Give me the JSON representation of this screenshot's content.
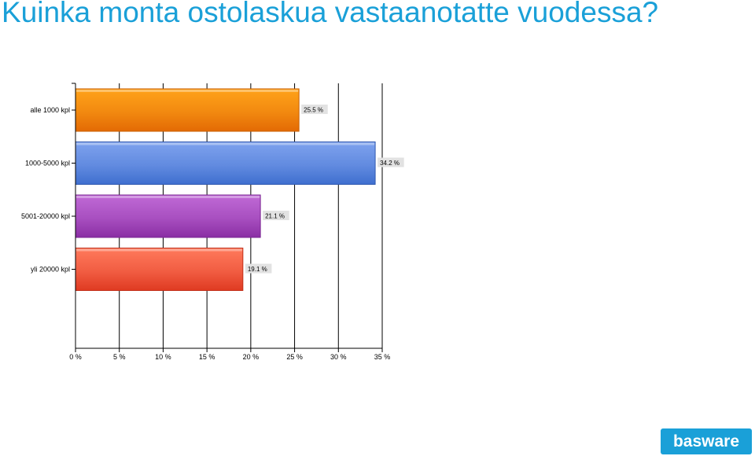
{
  "slide": {
    "title": "Kuinka monta ostolaskua vastaanotatte vuodessa?",
    "logo_text": "basware"
  },
  "colors": {
    "title": "#1aa0d8",
    "logo": "#1aa0d8",
    "axis": "#000000",
    "grid": "#000000",
    "label_box": "#e2e2e2"
  },
  "chart_data": {
    "type": "bar",
    "orientation": "horizontal",
    "title": "",
    "xlabel": "",
    "ylabel": "",
    "categories": [
      "alle 1000 kpl",
      "1000-5000 kpl",
      "5001-20000 kpl",
      "yli 20000 kpl"
    ],
    "values": [
      25.5,
      34.2,
      21.1,
      19.1
    ],
    "value_labels": [
      "25.5 %",
      "34.2 %",
      "21.1 %",
      "19.1 %"
    ],
    "bar_colors": [
      {
        "top": "#ffa319",
        "bottom": "#e36a04",
        "edge": "#c95f00"
      },
      {
        "top": "#7ea2ee",
        "bottom": "#3f6fcf",
        "edge": "#2f58b0"
      },
      {
        "top": "#c06ad6",
        "bottom": "#8a2ea4",
        "edge": "#7a2592"
      },
      {
        "top": "#ff7a5c",
        "bottom": "#df3a22",
        "edge": "#c12d17"
      }
    ],
    "xlim": [
      0,
      35
    ],
    "x_ticks": [
      0,
      5,
      10,
      15,
      20,
      25,
      30,
      35
    ],
    "x_tick_labels": [
      "0 %",
      "5 %",
      "10 %",
      "15 %",
      "20 %",
      "25 %",
      "30 %",
      "35 %"
    ],
    "grid": true
  }
}
